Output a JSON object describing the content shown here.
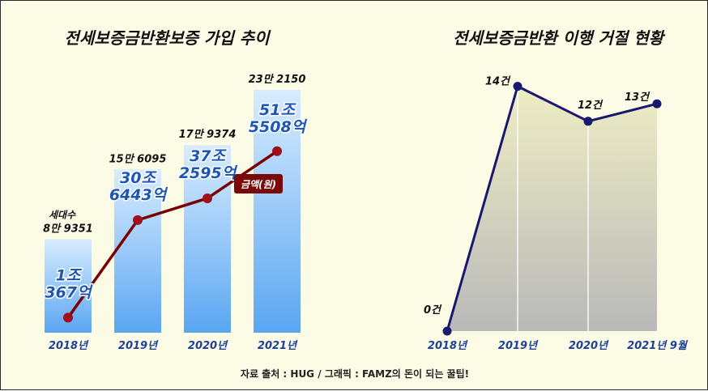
{
  "charts_meta": {
    "source": "자료 출처 :  HUG   /  그래픽  :  FAMZ의 돈이 되는 꿀팁!"
  },
  "chart_data": [
    {
      "type": "bar",
      "title": "전세보증금반환보증 가입 추이",
      "categories": [
        "2018년",
        "2019년",
        "2020년",
        "2021년"
      ],
      "bar_unit_label": "세대수",
      "series": [
        {
          "kind": "bar",
          "values": [
            89351,
            156095,
            179374,
            232150
          ],
          "labels": [
            "8만 9351",
            "15만 6095",
            "17만 9374",
            "23만 2150"
          ]
        },
        {
          "kind": "line",
          "name": "금액(원)",
          "values": [
            1.0367,
            30.6443,
            37.2595,
            51.5508
          ],
          "labels": [
            "1조\n367억",
            "30조\n6443억",
            "37조\n2595억",
            "51조\n5508억"
          ]
        }
      ],
      "colors": {
        "bar_top": "#d8ecff",
        "bar_bottom": "#5aa6f2",
        "line": "#7a0000",
        "marker": "#a0101c",
        "line_label": "#1e56b4"
      }
    },
    {
      "type": "area",
      "title": "전세보증금반환 이행 거절 현황",
      "categories": [
        "2018년",
        "2019년",
        "2020년",
        "2021년 9월"
      ],
      "values": [
        0,
        14,
        12,
        13
      ],
      "labels": [
        "0건",
        "14건",
        "12건",
        "13건"
      ],
      "colors": {
        "line": "#18186e",
        "fill_top": "#eeedc4",
        "fill_bottom": "#b9b9b9"
      }
    }
  ]
}
